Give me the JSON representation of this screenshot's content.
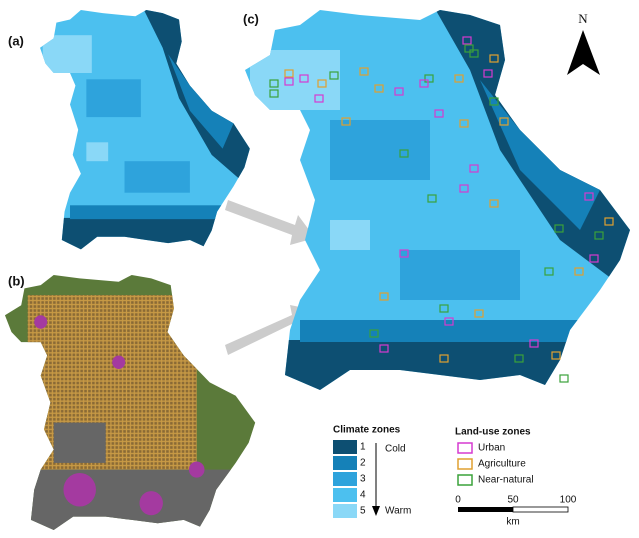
{
  "panels": {
    "a": "(a)",
    "b": "(b)",
    "c": "(c)"
  },
  "north": "N",
  "climate_legend": {
    "title": "Climate zones",
    "zones": [
      "1",
      "2",
      "3",
      "4",
      "5"
    ],
    "cold": "Cold",
    "warm": "Warm"
  },
  "landuse_legend": {
    "title": "Land-use zones",
    "items": [
      "Urban",
      "Agriculture",
      "Near-natural"
    ]
  },
  "scale_bar": {
    "ticks": [
      "0",
      "50",
      "100"
    ],
    "unit": "km"
  }
}
